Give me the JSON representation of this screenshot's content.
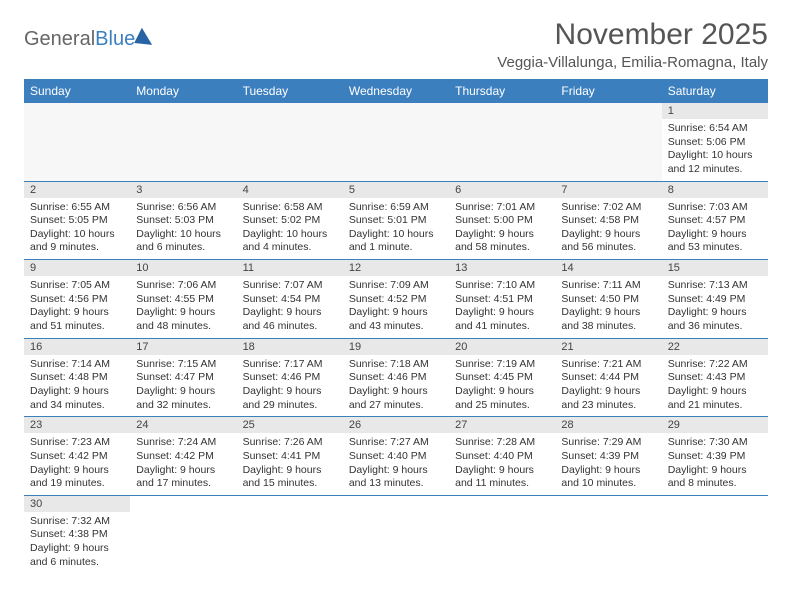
{
  "logo": {
    "textGeneral": "General",
    "textBlue": "Blue"
  },
  "header": {
    "monthTitle": "November 2025",
    "location": "Veggia-Villalunga, Emilia-Romagna, Italy"
  },
  "colors": {
    "headerBar": "#3b7fbf",
    "dayNumBg": "#e8e8e8",
    "rowDivider": "#3b7fbf",
    "background": "#ffffff"
  },
  "weekdays": [
    "Sunday",
    "Monday",
    "Tuesday",
    "Wednesday",
    "Thursday",
    "Friday",
    "Saturday"
  ],
  "weeks": [
    [
      null,
      null,
      null,
      null,
      null,
      null,
      {
        "n": "1",
        "sr": "Sunrise: 6:54 AM",
        "ss": "Sunset: 5:06 PM",
        "dl": "Daylight: 10 hours and 12 minutes."
      }
    ],
    [
      {
        "n": "2",
        "sr": "Sunrise: 6:55 AM",
        "ss": "Sunset: 5:05 PM",
        "dl": "Daylight: 10 hours and 9 minutes."
      },
      {
        "n": "3",
        "sr": "Sunrise: 6:56 AM",
        "ss": "Sunset: 5:03 PM",
        "dl": "Daylight: 10 hours and 6 minutes."
      },
      {
        "n": "4",
        "sr": "Sunrise: 6:58 AM",
        "ss": "Sunset: 5:02 PM",
        "dl": "Daylight: 10 hours and 4 minutes."
      },
      {
        "n": "5",
        "sr": "Sunrise: 6:59 AM",
        "ss": "Sunset: 5:01 PM",
        "dl": "Daylight: 10 hours and 1 minute."
      },
      {
        "n": "6",
        "sr": "Sunrise: 7:01 AM",
        "ss": "Sunset: 5:00 PM",
        "dl": "Daylight: 9 hours and 58 minutes."
      },
      {
        "n": "7",
        "sr": "Sunrise: 7:02 AM",
        "ss": "Sunset: 4:58 PM",
        "dl": "Daylight: 9 hours and 56 minutes."
      },
      {
        "n": "8",
        "sr": "Sunrise: 7:03 AM",
        "ss": "Sunset: 4:57 PM",
        "dl": "Daylight: 9 hours and 53 minutes."
      }
    ],
    [
      {
        "n": "9",
        "sr": "Sunrise: 7:05 AM",
        "ss": "Sunset: 4:56 PM",
        "dl": "Daylight: 9 hours and 51 minutes."
      },
      {
        "n": "10",
        "sr": "Sunrise: 7:06 AM",
        "ss": "Sunset: 4:55 PM",
        "dl": "Daylight: 9 hours and 48 minutes."
      },
      {
        "n": "11",
        "sr": "Sunrise: 7:07 AM",
        "ss": "Sunset: 4:54 PM",
        "dl": "Daylight: 9 hours and 46 minutes."
      },
      {
        "n": "12",
        "sr": "Sunrise: 7:09 AM",
        "ss": "Sunset: 4:52 PM",
        "dl": "Daylight: 9 hours and 43 minutes."
      },
      {
        "n": "13",
        "sr": "Sunrise: 7:10 AM",
        "ss": "Sunset: 4:51 PM",
        "dl": "Daylight: 9 hours and 41 minutes."
      },
      {
        "n": "14",
        "sr": "Sunrise: 7:11 AM",
        "ss": "Sunset: 4:50 PM",
        "dl": "Daylight: 9 hours and 38 minutes."
      },
      {
        "n": "15",
        "sr": "Sunrise: 7:13 AM",
        "ss": "Sunset: 4:49 PM",
        "dl": "Daylight: 9 hours and 36 minutes."
      }
    ],
    [
      {
        "n": "16",
        "sr": "Sunrise: 7:14 AM",
        "ss": "Sunset: 4:48 PM",
        "dl": "Daylight: 9 hours and 34 minutes."
      },
      {
        "n": "17",
        "sr": "Sunrise: 7:15 AM",
        "ss": "Sunset: 4:47 PM",
        "dl": "Daylight: 9 hours and 32 minutes."
      },
      {
        "n": "18",
        "sr": "Sunrise: 7:17 AM",
        "ss": "Sunset: 4:46 PM",
        "dl": "Daylight: 9 hours and 29 minutes."
      },
      {
        "n": "19",
        "sr": "Sunrise: 7:18 AM",
        "ss": "Sunset: 4:46 PM",
        "dl": "Daylight: 9 hours and 27 minutes."
      },
      {
        "n": "20",
        "sr": "Sunrise: 7:19 AM",
        "ss": "Sunset: 4:45 PM",
        "dl": "Daylight: 9 hours and 25 minutes."
      },
      {
        "n": "21",
        "sr": "Sunrise: 7:21 AM",
        "ss": "Sunset: 4:44 PM",
        "dl": "Daylight: 9 hours and 23 minutes."
      },
      {
        "n": "22",
        "sr": "Sunrise: 7:22 AM",
        "ss": "Sunset: 4:43 PM",
        "dl": "Daylight: 9 hours and 21 minutes."
      }
    ],
    [
      {
        "n": "23",
        "sr": "Sunrise: 7:23 AM",
        "ss": "Sunset: 4:42 PM",
        "dl": "Daylight: 9 hours and 19 minutes."
      },
      {
        "n": "24",
        "sr": "Sunrise: 7:24 AM",
        "ss": "Sunset: 4:42 PM",
        "dl": "Daylight: 9 hours and 17 minutes."
      },
      {
        "n": "25",
        "sr": "Sunrise: 7:26 AM",
        "ss": "Sunset: 4:41 PM",
        "dl": "Daylight: 9 hours and 15 minutes."
      },
      {
        "n": "26",
        "sr": "Sunrise: 7:27 AM",
        "ss": "Sunset: 4:40 PM",
        "dl": "Daylight: 9 hours and 13 minutes."
      },
      {
        "n": "27",
        "sr": "Sunrise: 7:28 AM",
        "ss": "Sunset: 4:40 PM",
        "dl": "Daylight: 9 hours and 11 minutes."
      },
      {
        "n": "28",
        "sr": "Sunrise: 7:29 AM",
        "ss": "Sunset: 4:39 PM",
        "dl": "Daylight: 9 hours and 10 minutes."
      },
      {
        "n": "29",
        "sr": "Sunrise: 7:30 AM",
        "ss": "Sunset: 4:39 PM",
        "dl": "Daylight: 9 hours and 8 minutes."
      }
    ],
    [
      {
        "n": "30",
        "sr": "Sunrise: 7:32 AM",
        "ss": "Sunset: 4:38 PM",
        "dl": "Daylight: 9 hours and 6 minutes."
      },
      null,
      null,
      null,
      null,
      null,
      null
    ]
  ]
}
